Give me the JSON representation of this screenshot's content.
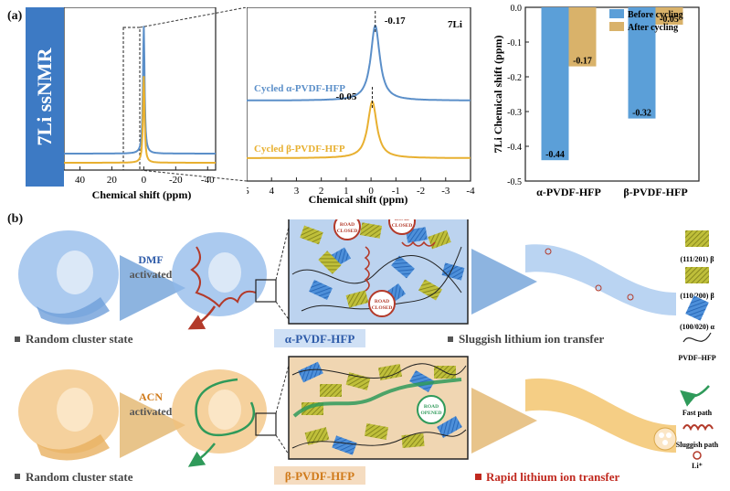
{
  "panel_a_label": "(a)",
  "panel_b_label": "(b)",
  "sidebar_label": "7Li ssNMR",
  "chart_data": [
    {
      "type": "line",
      "xlabel": "Chemical shift (ppm)",
      "xticks": [
        40,
        20,
        0,
        -20,
        -40
      ],
      "xlim": [
        50,
        -45
      ],
      "series": [
        {
          "color": "#5b8fc9",
          "peak": 0,
          "offset": 1
        },
        {
          "color": "#e8b030",
          "peak": 0,
          "offset": 0
        }
      ]
    },
    {
      "type": "line",
      "xlabel": "Chemical shift (ppm)",
      "xticks": [
        5,
        4,
        3,
        2,
        1,
        0,
        -1,
        -2,
        -3,
        -4
      ],
      "xlim": [
        5,
        -4
      ],
      "nucleus_label": "7Li",
      "series": [
        {
          "name": "Cycled α-PVDF-HFP",
          "color": "#5b8fc9",
          "peak": -0.17,
          "peak_label": "-0.17"
        },
        {
          "name": "Cycled β-PVDF-HFP",
          "color": "#e8b030",
          "peak": -0.05,
          "peak_label": "-0.05"
        }
      ]
    },
    {
      "type": "bar",
      "ylabel": "7Li Chemical shift (ppm)",
      "yticks": [
        -0.5,
        -0.4,
        -0.3,
        -0.2,
        -0.1,
        0.0
      ],
      "ylim": [
        0,
        -0.5
      ],
      "categories": [
        "α-PVDF-HFP",
        "β-PVDF-HFP"
      ],
      "series": [
        {
          "name": "Before cycling",
          "color": "#5b9fd8",
          "values": [
            -0.44,
            -0.32
          ]
        },
        {
          "name": "After cycling",
          "color": "#d9b26a",
          "values": [
            -0.17,
            -0.05
          ]
        }
      ],
      "value_labels": [
        [
          "-0.44",
          "-0.17"
        ],
        [
          "-0.32",
          "-0.05"
        ]
      ]
    }
  ],
  "schematic": {
    "row1": {
      "activator": "DMF",
      "activated": "activated",
      "state_label": "Random cluster state",
      "phase_label": "α-PVDF-HFP",
      "transfer_label": "Sluggish lithium ion transfer",
      "road_signs": [
        "ROAD CLOSED",
        "ROAD CLOSED",
        "ROAD CLOSED"
      ]
    },
    "row2": {
      "activator": "ACN",
      "activated": "activated",
      "state_label": "Random cluster state",
      "phase_label": "β-PVDF-HFP",
      "transfer_label": "Rapid lithium ion transfer",
      "road_sign": "ROAD OPENED"
    },
    "legend": [
      {
        "label": "(111/201) β",
        "icon": "stripe-olive"
      },
      {
        "label": "(110/200) β",
        "icon": "stripe-olive"
      },
      {
        "label": "(100/020) α",
        "icon": "stripe-blue"
      },
      {
        "label": "PVDF–HFP",
        "icon": "chain-curve"
      },
      {
        "label": "Fast path",
        "icon": "green-arrow"
      },
      {
        "label": "Sluggish path",
        "icon": "red-coil"
      },
      {
        "label": "Li⁺",
        "icon": "li-ion"
      }
    ]
  },
  "colors": {
    "alpha_blue": "#5b8fc9",
    "beta_orange": "#e8b030",
    "sidebar_blue": "#3d7ac4",
    "fast_green": "#2f9a5a",
    "sluggish_red": "#b33a2a",
    "alpha_box": "#bcd3ef",
    "beta_box": "#f0d6b2"
  }
}
